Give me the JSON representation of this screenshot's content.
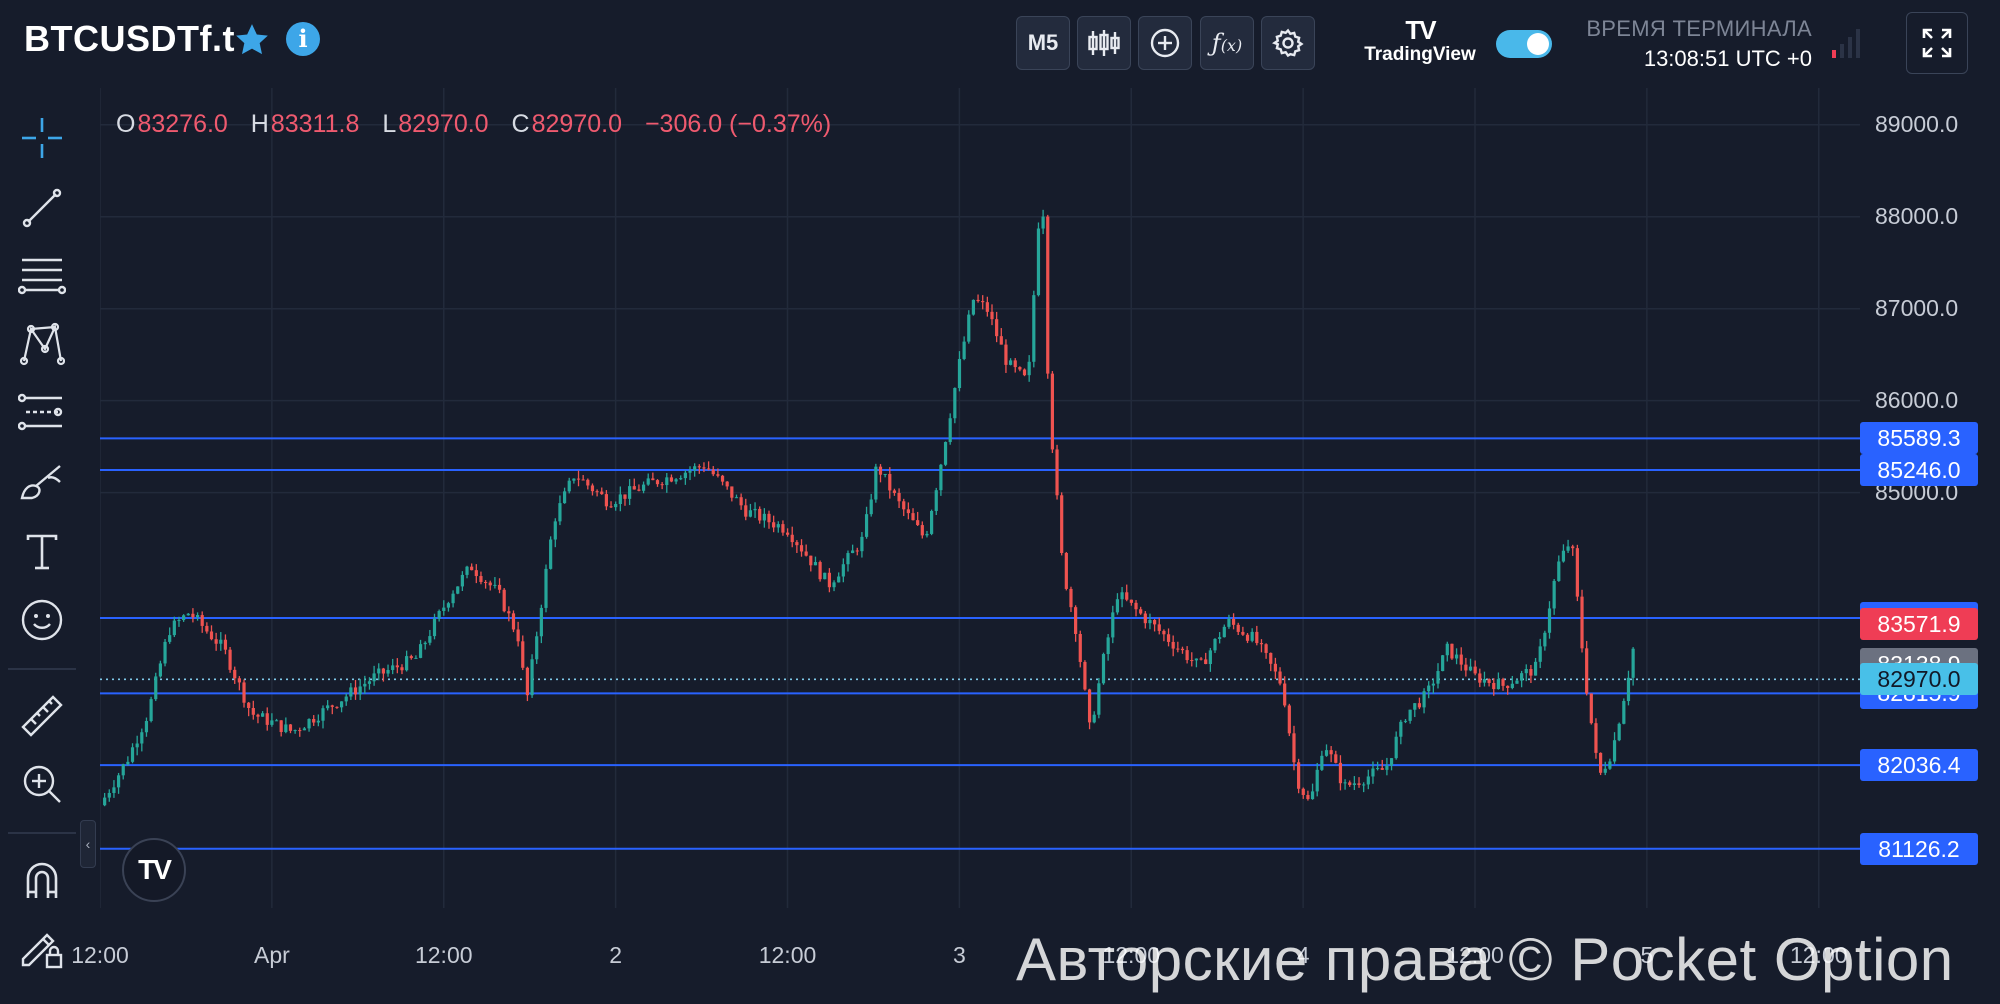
{
  "header": {
    "symbol": "BTCUSDTf.t",
    "timeframe": "M5",
    "tv_logo_mark": "TV",
    "tv_logo_text": "TradingView",
    "terminal_time_label": "ВРЕМЯ ТЕРМИНАЛА",
    "terminal_time": "13:08:51 UTC +0",
    "toggle_on": true,
    "icons": [
      "star-icon",
      "info-icon",
      "candles-icon",
      "add-circle-icon",
      "function-icon",
      "gear-icon",
      "signal-icon",
      "fullscreen-icon"
    ]
  },
  "tools": [
    "crosshair-icon",
    "trend-line-icon",
    "fib-lines-icon",
    "pattern-icon",
    "forecast-icon",
    "brush-icon",
    "text-icon",
    "emoji-icon",
    "ruler-icon",
    "zoom-in-icon",
    "magnet-icon",
    "lock-draw-icon"
  ],
  "ohlc": {
    "o_key": "O",
    "o": "83276.0",
    "h_key": "H",
    "h": "83311.8",
    "l_key": "L",
    "l": "82970.0",
    "c_key": "C",
    "c": "82970.0",
    "change": "−306.0 (−0.37%)"
  },
  "price_axis": {
    "ticks": [
      "89000.0",
      "88000.0",
      "87000.0",
      "86000.0",
      "85000.0"
    ],
    "tick_values": [
      89000,
      88000,
      87000,
      86000,
      85000
    ],
    "range": [
      80700,
      89400
    ]
  },
  "horizontal_lines": [
    {
      "value": 85589.3,
      "label": "85589.3",
      "color": "#2962ff"
    },
    {
      "value": 85246.0,
      "label": "85246.0",
      "color": "#2962ff"
    },
    {
      "value": 83636.9,
      "label": "83636.9",
      "color": "#2962ff"
    },
    {
      "value": 82815.9,
      "label": "82815.9",
      "color": "#2962ff"
    },
    {
      "value": 82036.4,
      "label": "82036.4",
      "color": "#2962ff"
    },
    {
      "value": 81126.2,
      "label": "81126.2",
      "color": "#2962ff"
    }
  ],
  "price_badges": [
    {
      "value": 83571.9,
      "label": "83571.9",
      "color": "#ef3d55"
    },
    {
      "value": 83138.9,
      "label": "83138.9",
      "color": "#6b7180"
    },
    {
      "value": 82970.0,
      "label": "82970.0",
      "color": "#48c0e8",
      "text_color": "#111827"
    }
  ],
  "time_axis": {
    "labels": [
      "12:00",
      "Apr",
      "12:00",
      "2",
      "12:00",
      "3",
      "12:00",
      "4",
      "12:00",
      "5",
      "12:00"
    ],
    "tick_fractions": [
      0.0,
      0.125,
      0.25,
      0.375,
      0.5,
      0.625,
      0.75,
      0.875,
      1.0,
      1.125,
      1.25
    ]
  },
  "chart_data": {
    "type": "candlestick",
    "timeframe": "M5",
    "path": [
      [
        0,
        81600
      ],
      [
        0.02,
        82100
      ],
      [
        0.035,
        82600
      ],
      [
        0.05,
        83500
      ],
      [
        0.065,
        83700
      ],
      [
        0.09,
        83300
      ],
      [
        0.11,
        82600
      ],
      [
        0.14,
        82400
      ],
      [
        0.17,
        82700
      ],
      [
        0.2,
        83000
      ],
      [
        0.23,
        83200
      ],
      [
        0.255,
        83900
      ],
      [
        0.27,
        84200
      ],
      [
        0.29,
        83900
      ],
      [
        0.305,
        83400
      ],
      [
        0.31,
        82700
      ],
      [
        0.33,
        84700
      ],
      [
        0.345,
        85200
      ],
      [
        0.37,
        84900
      ],
      [
        0.4,
        85100
      ],
      [
        0.44,
        85300
      ],
      [
        0.47,
        84800
      ],
      [
        0.5,
        84600
      ],
      [
        0.53,
        84000
      ],
      [
        0.555,
        84500
      ],
      [
        0.565,
        85300
      ],
      [
        0.58,
        84900
      ],
      [
        0.6,
        84500
      ],
      [
        0.61,
        85200
      ],
      [
        0.625,
        86400
      ],
      [
        0.635,
        87100
      ],
      [
        0.645,
        87000
      ],
      [
        0.66,
        86400
      ],
      [
        0.675,
        86200
      ],
      [
        0.685,
        88500
      ],
      [
        0.69,
        86000
      ],
      [
        0.7,
        84200
      ],
      [
        0.71,
        83500
      ],
      [
        0.72,
        82400
      ],
      [
        0.73,
        83200
      ],
      [
        0.74,
        83900
      ],
      [
        0.77,
        83500
      ],
      [
        0.8,
        83100
      ],
      [
        0.82,
        83600
      ],
      [
        0.84,
        83400
      ],
      [
        0.86,
        82900
      ],
      [
        0.87,
        81900
      ],
      [
        0.88,
        81600
      ],
      [
        0.89,
        82300
      ],
      [
        0.905,
        81800
      ],
      [
        0.92,
        81900
      ],
      [
        0.935,
        82000
      ],
      [
        0.95,
        82600
      ],
      [
        0.965,
        82800
      ],
      [
        0.98,
        83300
      ],
      [
        1.0,
        83000
      ],
      [
        1.02,
        82900
      ],
      [
        1.045,
        83100
      ],
      [
        1.06,
        84200
      ],
      [
        1.07,
        84500
      ],
      [
        1.08,
        83000
      ],
      [
        1.09,
        81900
      ],
      [
        1.1,
        82200
      ],
      [
        1.11,
        82900
      ],
      [
        1.115,
        83300
      ]
    ],
    "last_price": 82970.0,
    "x_range": [
      0,
      1.28
    ]
  }
}
